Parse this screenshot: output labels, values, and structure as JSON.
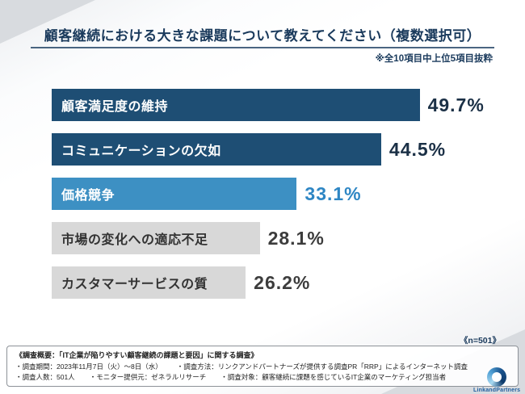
{
  "title": "顧客継続における大きな課題について教えてください（複数選択可）",
  "subtitle": "※全10項目中上位5項目抜粋",
  "sample_note": "《n=501》",
  "chart_data": {
    "type": "bar",
    "orientation": "horizontal",
    "title": "顧客継続における大きな課題について教えてください（複数選択可）",
    "categories": [
      "顧客満足度の維持",
      "コミュニケーションの欠如",
      "価格競争",
      "市場の変化への適応不足",
      "カスタマーサービスの質"
    ],
    "values": [
      49.7,
      44.5,
      33.1,
      28.1,
      26.2
    ],
    "value_labels": [
      "49.7%",
      "44.5%",
      "33.1%",
      "28.1%",
      "26.2%"
    ],
    "xlim": [
      0,
      60
    ],
    "grid": false,
    "legend": false,
    "bar_colors": [
      "#1e4e74",
      "#1e4e74",
      "#3d90c3",
      "#d8d8d8",
      "#d8d8d8"
    ],
    "label_text_colors": [
      "#ffffff",
      "#ffffff",
      "#ffffff",
      "#333333",
      "#333333"
    ],
    "value_text_colors": [
      "#1b3046",
      "#1b3046",
      "#2e86c4",
      "#3c3c3c",
      "#3c3c3c"
    ]
  },
  "footer": {
    "heading": "《調査概要：「IT企業が陥りやすい顧客継続の課題と要因」に関する調査》",
    "items": [
      "・調査期間：2023年11月7日（火）～8日（水）",
      "・調査方法：リンクアンドパートナーズが提供する調査PR「RRP」によるインターネット調査",
      "・調査人数：501人",
      "・モニター提供元：ゼネラルリサーチ",
      "・調査対象：顧客継続に課題を感じているIT企業のマーケティング担当者"
    ]
  },
  "logo": {
    "text": "LinkandPartners"
  }
}
